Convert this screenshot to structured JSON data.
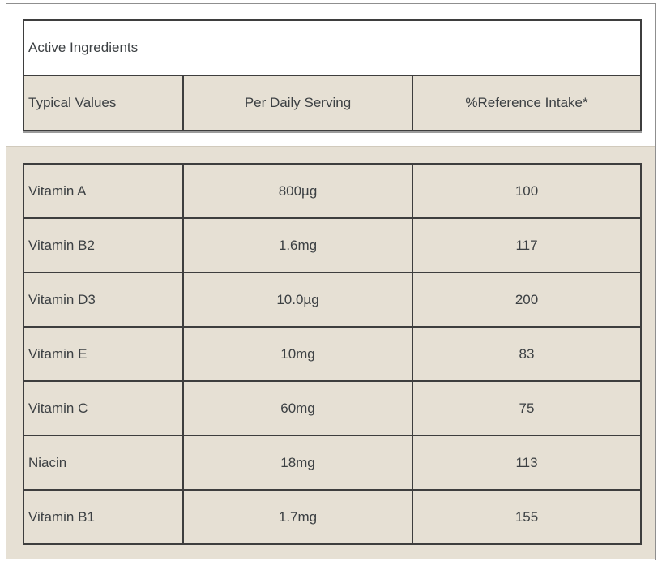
{
  "panel": {
    "section_title": "Active Ingredients",
    "table": {
      "columns": [
        "Typical Values",
        "Per Daily Serving",
        "%Reference Intake*"
      ],
      "rows": [
        {
          "name": "Vitamin A",
          "per_serving": "800µg",
          "reference_intake": "100"
        },
        {
          "name": "Vitamin B2",
          "per_serving": "1.6mg",
          "reference_intake": "117"
        },
        {
          "name": "Vitamin D3",
          "per_serving": "10.0µg",
          "reference_intake": "200"
        },
        {
          "name": "Vitamin E",
          "per_serving": "10mg",
          "reference_intake": "83"
        },
        {
          "name": "Vitamin C",
          "per_serving": "60mg",
          "reference_intake": "75"
        },
        {
          "name": "Niacin",
          "per_serving": "18mg",
          "reference_intake": "113"
        },
        {
          "name": "Vitamin B1",
          "per_serving": "1.7mg",
          "reference_intake": "155"
        }
      ]
    },
    "colors": {
      "section_background": "#e6e0d4",
      "table_border": "#3e3e3e",
      "panel_border": "#8f8f8f",
      "text": "#3c4043"
    }
  }
}
